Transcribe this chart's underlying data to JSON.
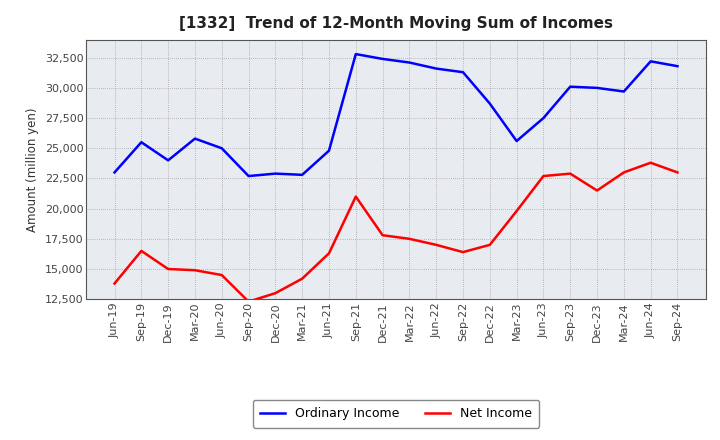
{
  "title": "[1332]  Trend of 12-Month Moving Sum of Incomes",
  "ylabel": "Amount (million yen)",
  "x_labels": [
    "Jun-19",
    "Sep-19",
    "Dec-19",
    "Mar-20",
    "Jun-20",
    "Sep-20",
    "Dec-20",
    "Mar-21",
    "Jun-21",
    "Sep-21",
    "Dec-21",
    "Mar-22",
    "Jun-22",
    "Sep-22",
    "Dec-22",
    "Mar-23",
    "Jun-23",
    "Sep-23",
    "Dec-23",
    "Mar-24",
    "Jun-24",
    "Sep-24"
  ],
  "ordinary_income": [
    23000,
    25500,
    24000,
    25800,
    25000,
    22700,
    22900,
    22800,
    24800,
    32800,
    32400,
    32100,
    31600,
    31300,
    28700,
    25600,
    27500,
    30100,
    30000,
    29700,
    32200,
    31800
  ],
  "net_income": [
    13800,
    16500,
    15000,
    14900,
    14500,
    12300,
    13000,
    14200,
    16300,
    21000,
    17800,
    17500,
    17000,
    16400,
    17000,
    19800,
    22700,
    22900,
    21500,
    23000,
    23800,
    23000
  ],
  "ordinary_color": "#0000FF",
  "net_color": "#FF0000",
  "ylim_min": 12500,
  "ylim_max": 34000,
  "yticks": [
    12500,
    15000,
    17500,
    20000,
    22500,
    25000,
    27500,
    30000,
    32500
  ],
  "bg_color": "#FFFFFF",
  "plot_bg_color": "#E8EBF0",
  "grid_color": "#888888",
  "line_width": 1.8,
  "title_fontsize": 11,
  "label_fontsize": 8.5,
  "tick_fontsize": 8
}
